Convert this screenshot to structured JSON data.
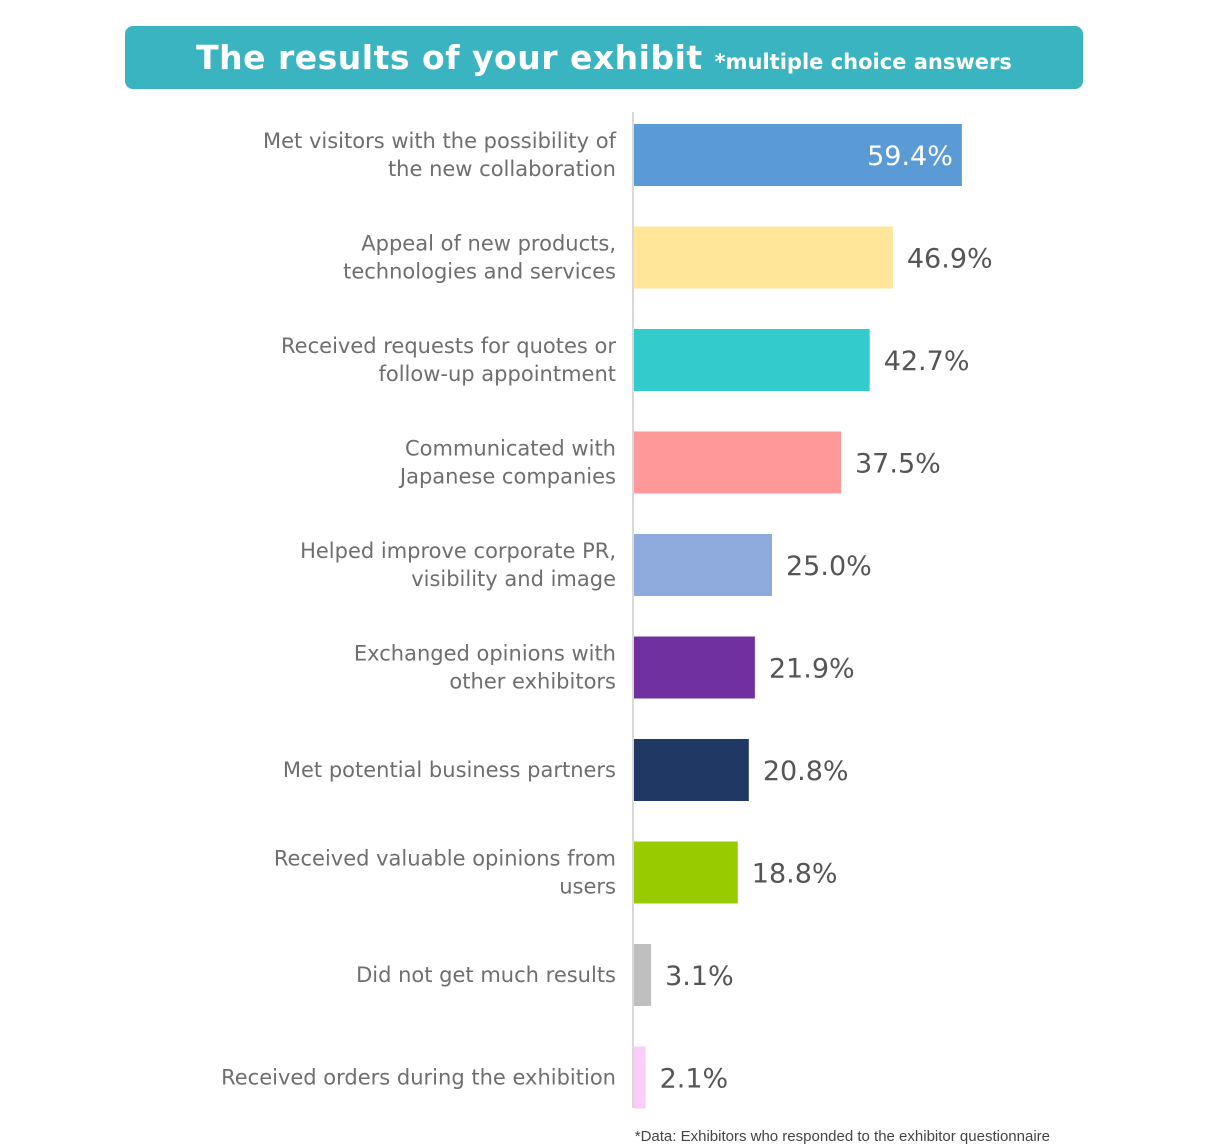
{
  "header": {
    "title": "The results of your exhibit",
    "subtitle": "*multiple choice answers"
  },
  "footnote": "*Data: Exhibitors who responded to the exhibitor questionnaire",
  "chart_data": {
    "type": "bar",
    "orientation": "horizontal",
    "categories": [
      [
        "Met visitors with the possibility of",
        "the new collaboration"
      ],
      [
        "Appeal of new products,",
        "technologies and services"
      ],
      [
        "Received requests for quotes or",
        "follow-up appointment"
      ],
      [
        "Communicated with",
        "Japanese companies"
      ],
      [
        "Helped improve corporate PR,",
        "visibility and image"
      ],
      [
        "Exchanged opinions with",
        "other exhibitors"
      ],
      [
        "Met potential business partners"
      ],
      [
        "Received valuable opinions from",
        "users"
      ],
      [
        "Did not get much results"
      ],
      [
        "Received orders during the exhibition"
      ]
    ],
    "values": [
      59.4,
      46.9,
      42.7,
      37.5,
      25.0,
      21.9,
      20.8,
      18.8,
      3.1,
      2.1
    ],
    "value_labels": [
      "59.4%",
      "46.9%",
      "42.7%",
      "37.5%",
      "25.0%",
      "21.9%",
      "20.8%",
      "18.8%",
      "3.1%",
      "2.1%"
    ],
    "colors": [
      "#5b9bd5",
      "#ffe699",
      "#33cccc",
      "#ff9999",
      "#8faadc",
      "#7030a0",
      "#1f3864",
      "#99cc00",
      "#bfbfbf",
      "#f9ccf9"
    ],
    "label_inside": [
      true,
      false,
      false,
      false,
      false,
      false,
      false,
      false,
      false,
      false
    ],
    "axis_color": "#d9d9d9",
    "grid": false,
    "legend": "none"
  }
}
